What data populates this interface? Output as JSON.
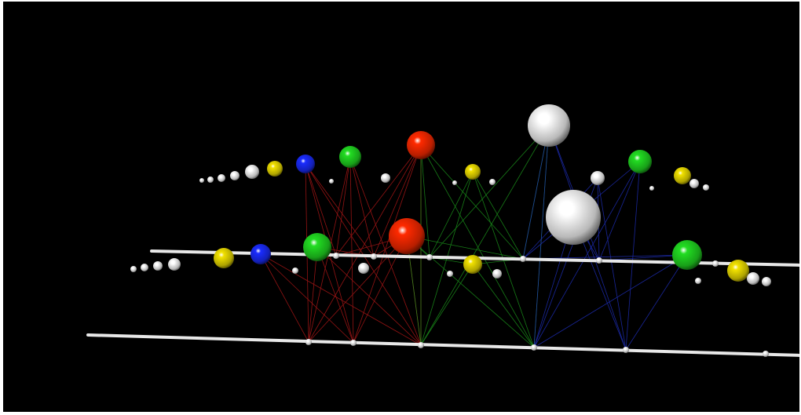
{
  "colors": {
    "background": "#000000",
    "red": "#ff2a00",
    "green": "#22dd22",
    "blue": "#1a2cff",
    "yellow": "#f2e200",
    "white": "#ffffff",
    "red_link": "#c41a1a",
    "green_link": "#1fa51f",
    "blue_link": "#2233cc",
    "rail": "#e8e8e8"
  },
  "rows": [
    {
      "name": "front-row",
      "spheres": [
        {
          "color": "white"
        },
        {
          "color": "white"
        },
        {
          "color": "white"
        },
        {
          "color": "white"
        },
        {
          "color": "yellow"
        },
        {
          "color": "blue"
        },
        {
          "color": "green"
        },
        {
          "color": "white"
        },
        {
          "color": "white"
        },
        {
          "color": "red"
        },
        {
          "color": "yellow"
        },
        {
          "color": "white"
        },
        {
          "color": "white"
        },
        {
          "color": "white"
        },
        {
          "color": "green"
        },
        {
          "color": "yellow"
        },
        {
          "color": "white"
        },
        {
          "color": "white"
        },
        {
          "color": "white"
        }
      ]
    },
    {
      "name": "back-row",
      "spheres": [
        {
          "color": "white"
        },
        {
          "color": "white"
        },
        {
          "color": "white"
        },
        {
          "color": "white"
        },
        {
          "color": "white"
        },
        {
          "color": "yellow"
        },
        {
          "color": "blue"
        },
        {
          "color": "white"
        },
        {
          "color": "green"
        },
        {
          "color": "white"
        },
        {
          "color": "red"
        },
        {
          "color": "white"
        },
        {
          "color": "yellow"
        },
        {
          "color": "white"
        },
        {
          "color": "white"
        },
        {
          "color": "white"
        },
        {
          "color": "green"
        },
        {
          "color": "white"
        },
        {
          "color": "yellow"
        },
        {
          "color": "white"
        },
        {
          "color": "white"
        }
      ]
    }
  ],
  "link_groups": [
    {
      "color": "red_link"
    },
    {
      "color": "green_link"
    },
    {
      "color": "blue_link"
    }
  ]
}
